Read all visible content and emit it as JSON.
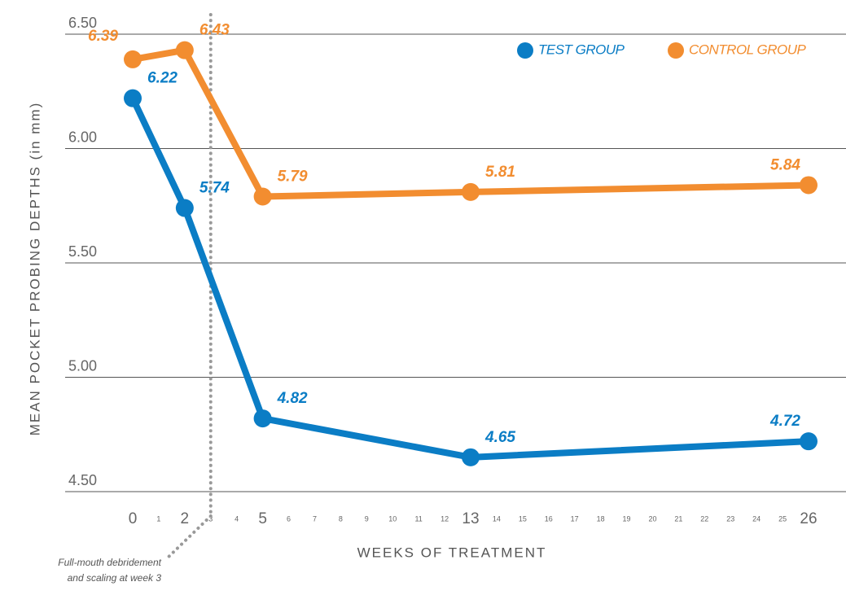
{
  "chart_data": {
    "type": "line",
    "y_label": "MEAN POCKET PROBING DEPTHS (in mm)",
    "x_label": "WEEKS OF TREATMENT",
    "annotation": [
      "Full-mouth debridement",
      "and scaling at week 3"
    ],
    "vline_x": 3,
    "x": [
      0,
      2,
      5,
      13,
      26
    ],
    "series": [
      {
        "name": "TEST GROUP",
        "color": "#0b7dc5",
        "values": [
          6.22,
          5.74,
          4.82,
          4.65,
          4.72
        ]
      },
      {
        "name": "CONTROL GROUP",
        "color": "#f28d30",
        "values": [
          6.39,
          6.43,
          5.79,
          5.81,
          5.84
        ]
      }
    ],
    "xlim": [
      0,
      26
    ],
    "xticks": [
      0,
      1,
      2,
      3,
      4,
      5,
      6,
      7,
      8,
      9,
      10,
      11,
      12,
      13,
      14,
      15,
      16,
      17,
      18,
      19,
      20,
      21,
      22,
      23,
      24,
      25,
      26
    ],
    "ylim": [
      4.5,
      6.5
    ],
    "yticks": [
      {
        "value": 4.5,
        "label": "4.50"
      },
      {
        "value": 5,
        "label": "5.00"
      },
      {
        "value": 5.5,
        "label": "5.50"
      },
      {
        "value": 6,
        "label": "6.00"
      },
      {
        "value": 6.5,
        "label": "6.50"
      }
    ],
    "grid": true,
    "legend": "top-right"
  }
}
